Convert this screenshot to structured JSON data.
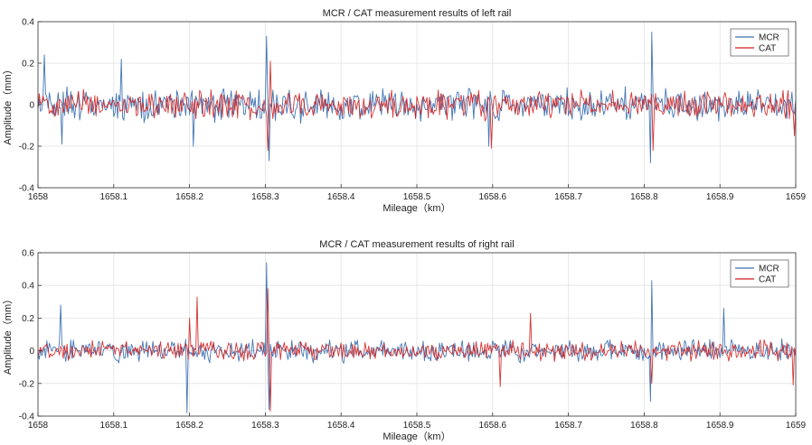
{
  "chart_data": [
    {
      "type": "line",
      "title": "MCR / CAT measurement results of left rail",
      "xlabel": "Mileage（km）",
      "ylabel": "Amplitude（mm）",
      "xlim": [
        1658,
        1659
      ],
      "ylim": [
        -0.4,
        0.4
      ],
      "xticks": [
        "1658",
        "1658.1",
        "1658.2",
        "1658.3",
        "1658.4",
        "1658.5",
        "1658.6",
        "1658.7",
        "1658.8",
        "1658.9",
        "1659"
      ],
      "yticks": [
        "0.4",
        "0.2",
        "0",
        "-0.2",
        "-0.4"
      ],
      "grid": true,
      "legend": "top-right",
      "series": [
        {
          "name": "MCR",
          "color": "#3a6fb0",
          "amplitude": 0.09,
          "spikes": [
            {
              "x": 1658.008,
              "y": 0.24
            },
            {
              "x": 1658.031,
              "y": -0.19
            },
            {
              "x": 1658.11,
              "y": 0.22
            },
            {
              "x": 1658.205,
              "y": -0.2
            },
            {
              "x": 1658.302,
              "y": 0.33
            },
            {
              "x": 1658.305,
              "y": -0.27
            },
            {
              "x": 1658.595,
              "y": -0.2
            },
            {
              "x": 1658.81,
              "y": 0.35
            },
            {
              "x": 1658.808,
              "y": -0.28
            }
          ]
        },
        {
          "name": "CAT",
          "color": "#d21f1f",
          "amplitude": 0.08,
          "spikes": [
            {
              "x": 1658.306,
              "y": 0.21
            },
            {
              "x": 1658.304,
              "y": -0.22
            },
            {
              "x": 1658.598,
              "y": -0.21
            },
            {
              "x": 1658.812,
              "y": -0.22
            },
            {
              "x": 1658.999,
              "y": -0.15
            }
          ]
        }
      ]
    },
    {
      "type": "line",
      "title": "MCR / CAT measurement results of right rail",
      "xlabel": "Mileage（km）",
      "ylabel": "Amplitude（mm）",
      "xlim": [
        1658,
        1659
      ],
      "ylim": [
        -0.4,
        0.6
      ],
      "xticks": [
        "1658",
        "1658.1",
        "1658.2",
        "1658.3",
        "1658.4",
        "1658.5",
        "1658.6",
        "1658.7",
        "1658.8",
        "1658.9",
        "1659"
      ],
      "yticks": [
        "0.6",
        "0.4",
        "0.2",
        "0",
        "-0.2",
        "-0.4"
      ],
      "grid": true,
      "legend": "top-right",
      "series": [
        {
          "name": "MCR",
          "color": "#3a6fb0",
          "amplitude": 0.08,
          "spikes": [
            {
              "x": 1658.03,
              "y": 0.28
            },
            {
              "x": 1658.197,
              "y": -0.38
            },
            {
              "x": 1658.302,
              "y": 0.54
            },
            {
              "x": 1658.305,
              "y": -0.36
            },
            {
              "x": 1658.81,
              "y": 0.43
            },
            {
              "x": 1658.808,
              "y": -0.31
            },
            {
              "x": 1658.905,
              "y": 0.26
            }
          ]
        },
        {
          "name": "CAT",
          "color": "#d21f1f",
          "amplitude": 0.07,
          "spikes": [
            {
              "x": 1658.21,
              "y": 0.33
            },
            {
              "x": 1658.2,
              "y": 0.2
            },
            {
              "x": 1658.303,
              "y": 0.38
            },
            {
              "x": 1658.306,
              "y": -0.37
            },
            {
              "x": 1658.61,
              "y": -0.22
            },
            {
              "x": 1658.65,
              "y": 0.23
            },
            {
              "x": 1658.81,
              "y": -0.2
            },
            {
              "x": 1658.997,
              "y": -0.21
            }
          ]
        }
      ]
    }
  ]
}
